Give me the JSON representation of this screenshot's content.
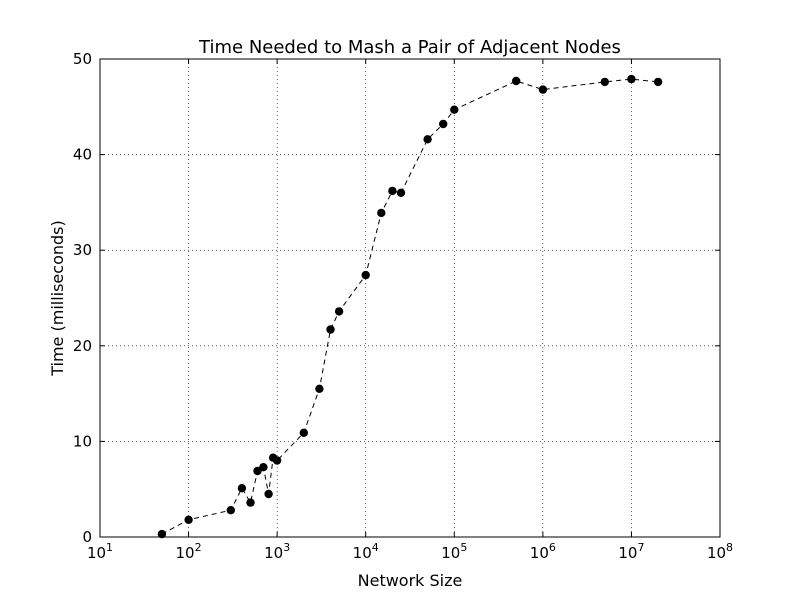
{
  "chart_data": {
    "type": "line",
    "title": "Time Needed to Mash a Pair of Adjacent Nodes",
    "xlabel": "Network Size",
    "ylabel": "Time (milliseconds)",
    "xscale": "log",
    "xlim": [
      10,
      100000000
    ],
    "ylim": [
      0,
      50
    ],
    "grid": true,
    "line_style": "dashed",
    "marker": "circle",
    "color": "#000000",
    "x_ticks": [
      {
        "base": "10",
        "exp": "1",
        "value": 10
      },
      {
        "base": "10",
        "exp": "2",
        "value": 100
      },
      {
        "base": "10",
        "exp": "3",
        "value": 1000
      },
      {
        "base": "10",
        "exp": "4",
        "value": 10000
      },
      {
        "base": "10",
        "exp": "5",
        "value": 100000
      },
      {
        "base": "10",
        "exp": "6",
        "value": 1000000
      },
      {
        "base": "10",
        "exp": "7",
        "value": 10000000
      },
      {
        "base": "10",
        "exp": "8",
        "value": 100000000
      }
    ],
    "y_ticks": [
      0,
      10,
      20,
      30,
      40,
      50
    ],
    "series": [
      {
        "x": [
          50,
          100,
          300,
          400,
          500,
          600,
          700,
          800,
          900,
          1000,
          2000,
          3000,
          4000,
          5000,
          10000,
          15000,
          20000,
          25000,
          50000,
          75000,
          100000,
          500000,
          1000000,
          5000000,
          10000000,
          20000000
        ],
        "y": [
          0.3,
          1.8,
          2.8,
          5.1,
          3.6,
          6.9,
          7.3,
          4.5,
          8.3,
          8.0,
          10.9,
          15.5,
          21.7,
          23.6,
          27.4,
          33.9,
          36.2,
          36.0,
          41.6,
          43.2,
          44.7,
          47.7,
          46.8,
          47.6,
          47.9,
          47.6
        ]
      }
    ]
  }
}
